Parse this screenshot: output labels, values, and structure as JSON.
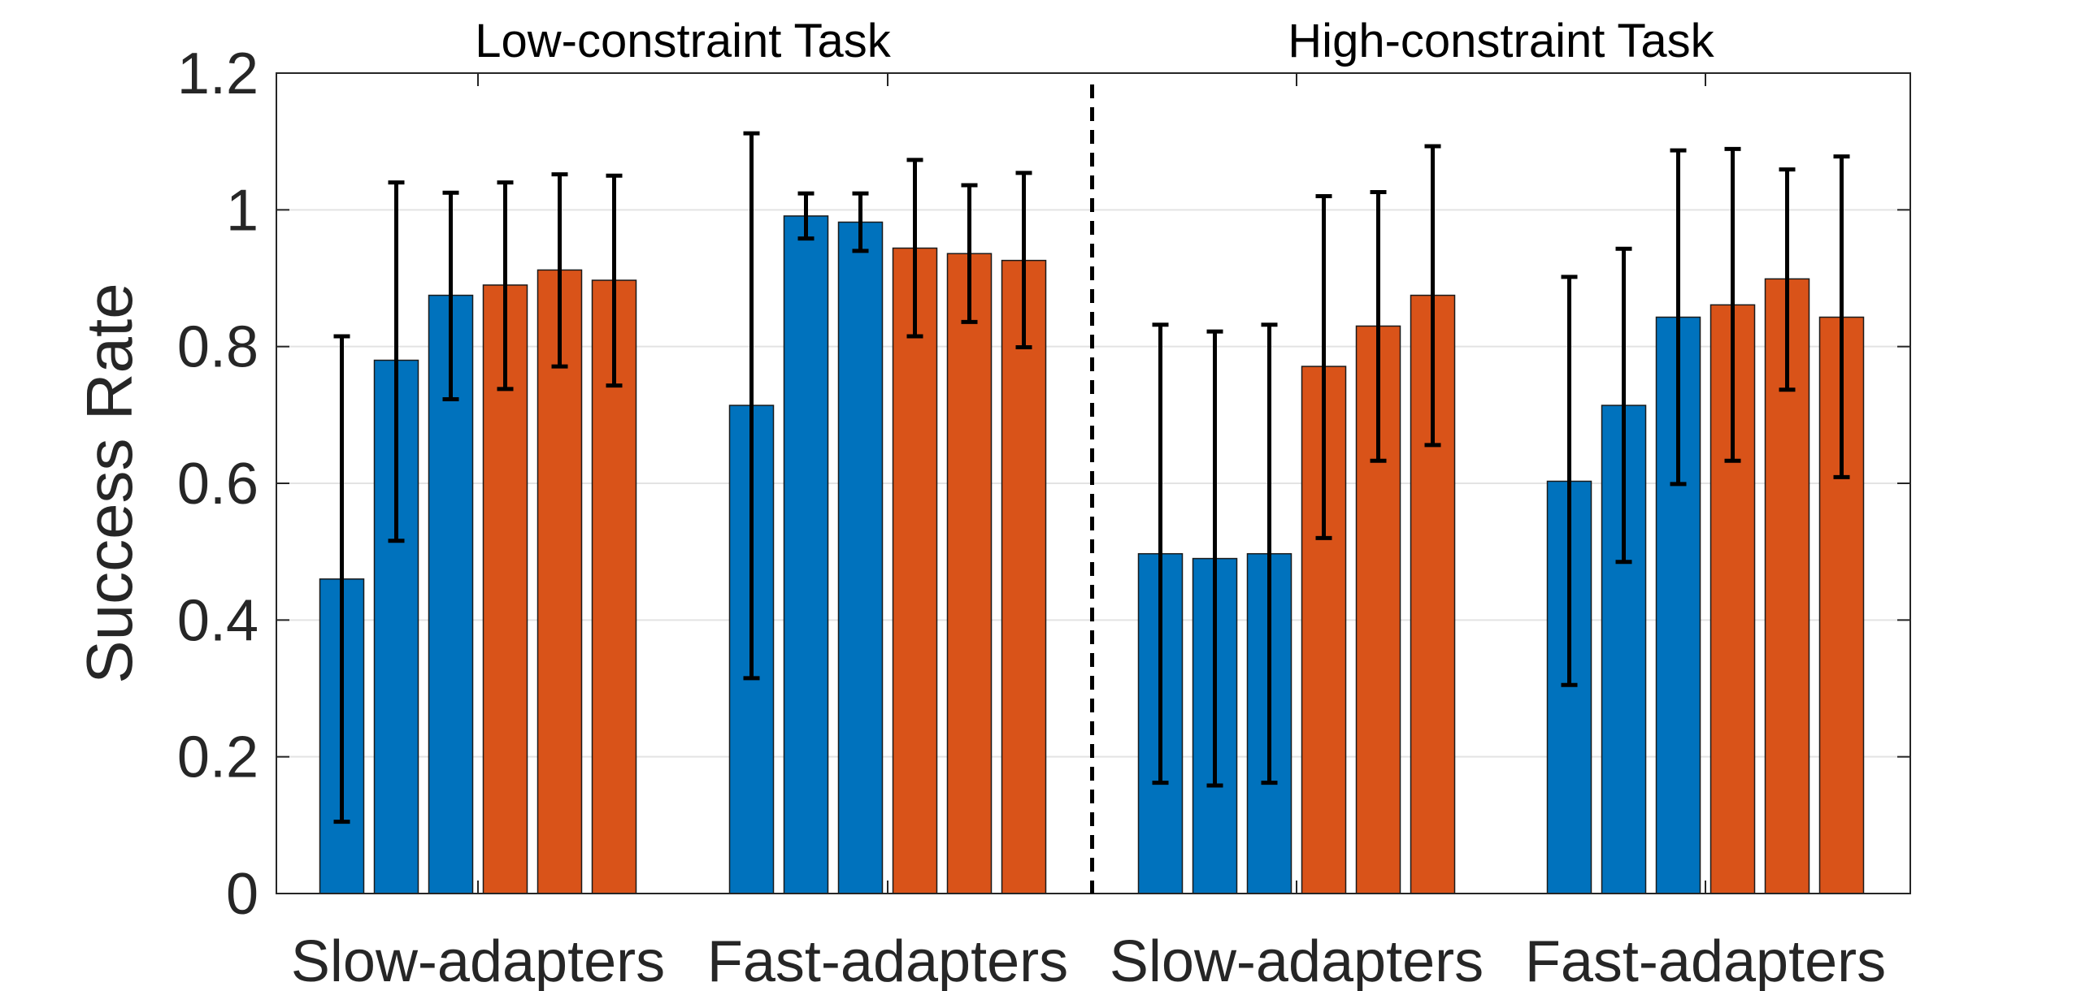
{
  "chart_data": {
    "type": "bar",
    "ylabel": "Success Rate",
    "ylim": [
      0,
      1.2
    ],
    "yticks": [
      0,
      0.2,
      0.4,
      0.6,
      0.8,
      1,
      1.2
    ],
    "ytick_labels": [
      "0",
      "0.2",
      "0.4",
      "0.6",
      "0.8",
      "1",
      "1.2"
    ],
    "grid": "horizontal",
    "series_colors": [
      "#0072BD",
      "#0072BD",
      "#0072BD",
      "#D95319",
      "#D95319",
      "#D95319"
    ],
    "panels": [
      {
        "title": "Low-constraint Task",
        "groups": [
          {
            "label": "Slow-adapters",
            "values": [
              0.46,
              0.78,
              0.875,
              0.89,
              0.912,
              0.897
            ],
            "error_low": [
              0.105,
              0.516,
              0.723,
              0.738,
              0.771,
              0.743
            ],
            "error_high": [
              0.815,
              1.04,
              1.025,
              1.04,
              1.052,
              1.05
            ]
          },
          {
            "label": "Fast-adapters",
            "values": [
              0.714,
              0.991,
              0.982,
              0.944,
              0.936,
              0.926
            ],
            "error_low": [
              0.315,
              0.958,
              0.94,
              0.815,
              0.836,
              0.799
            ],
            "error_high": [
              1.112,
              1.024,
              1.024,
              1.073,
              1.036,
              1.054
            ]
          }
        ]
      },
      {
        "title": "High-constraint Task",
        "groups": [
          {
            "label": "Slow-adapters",
            "values": [
              0.497,
              0.49,
              0.497,
              0.771,
              0.83,
              0.875
            ],
            "error_low": [
              0.162,
              0.158,
              0.162,
              0.52,
              0.633,
              0.656
            ],
            "error_high": [
              0.832,
              0.822,
              0.832,
              1.02,
              1.026,
              1.093
            ]
          },
          {
            "label": "Fast-adapters",
            "values": [
              0.603,
              0.714,
              0.843,
              0.861,
              0.899,
              0.843
            ],
            "error_low": [
              0.305,
              0.485,
              0.599,
              0.633,
              0.737,
              0.609
            ],
            "error_high": [
              0.902,
              0.943,
              1.087,
              1.089,
              1.059,
              1.078
            ]
          }
        ]
      }
    ]
  }
}
